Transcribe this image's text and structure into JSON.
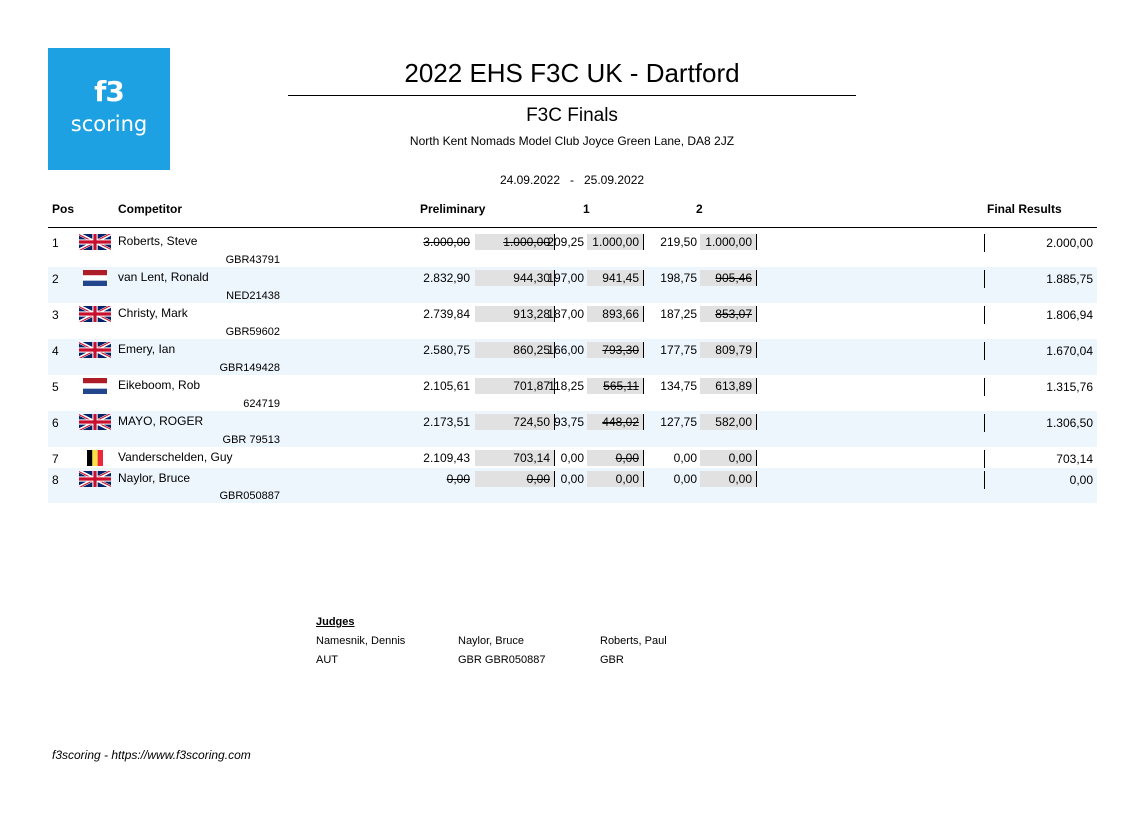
{
  "logo": {
    "line1": "f3",
    "line2": "scoring"
  },
  "event": {
    "title": "2022 EHS F3C UK - Dartford",
    "subtitle": "F3C Finals",
    "location": "North Kent Nomads Model Club Joyce Green Lane, DA8 2JZ",
    "date_start": "24.09.2022",
    "date_sep": "-",
    "date_end": "25.09.2022"
  },
  "table": {
    "headers": {
      "pos": "Pos",
      "competitor": "Competitor",
      "preliminary": "Preliminary",
      "round1": "1",
      "round2": "2",
      "final": "Final Results"
    },
    "rows": [
      {
        "pos": "1",
        "flag": "gbr",
        "name": "Roberts, Steve",
        "license": "GBR43791",
        "prelim_raw": "3.000,00",
        "prelim_raw_struck": true,
        "prelim_norm": "1.000,00",
        "prelim_norm_struck": true,
        "r1_raw": "209,25",
        "r1_norm": "1.000,00",
        "r1_struck": false,
        "r2_raw": "219,50",
        "r2_norm": "1.000,00",
        "r2_struck": false,
        "final": "2.000,00"
      },
      {
        "pos": "2",
        "flag": "ned",
        "name": "van Lent, Ronald",
        "license": "NED21438",
        "prelim_raw": "2.832,90",
        "prelim_raw_struck": false,
        "prelim_norm": "944,30",
        "prelim_norm_struck": false,
        "r1_raw": "197,00",
        "r1_norm": "941,45",
        "r1_struck": false,
        "r2_raw": "198,75",
        "r2_norm": "905,46",
        "r2_struck": true,
        "final": "1.885,75"
      },
      {
        "pos": "3",
        "flag": "gbr",
        "name": "Christy, Mark",
        "license": "GBR59602",
        "prelim_raw": "2.739,84",
        "prelim_raw_struck": false,
        "prelim_norm": "913,28",
        "prelim_norm_struck": false,
        "r1_raw": "187,00",
        "r1_norm": "893,66",
        "r1_struck": false,
        "r2_raw": "187,25",
        "r2_norm": "853,07",
        "r2_struck": true,
        "final": "1.806,94"
      },
      {
        "pos": "4",
        "flag": "gbr",
        "name": "Emery, Ian",
        "license": "GBR149428",
        "prelim_raw": "2.580,75",
        "prelim_raw_struck": false,
        "prelim_norm": "860,25",
        "prelim_norm_struck": false,
        "r1_raw": "166,00",
        "r1_norm": "793,30",
        "r1_struck": true,
        "r2_raw": "177,75",
        "r2_norm": "809,79",
        "r2_struck": false,
        "final": "1.670,04"
      },
      {
        "pos": "5",
        "flag": "ned",
        "name": "Eikeboom, Rob",
        "license": "624719",
        "prelim_raw": "2.105,61",
        "prelim_raw_struck": false,
        "prelim_norm": "701,87",
        "prelim_norm_struck": false,
        "r1_raw": "118,25",
        "r1_norm": "565,11",
        "r1_struck": true,
        "r2_raw": "134,75",
        "r2_norm": "613,89",
        "r2_struck": false,
        "final": "1.315,76"
      },
      {
        "pos": "6",
        "flag": "gbr",
        "name": "MAYO, ROGER",
        "license": "GBR 79513",
        "prelim_raw": "2.173,51",
        "prelim_raw_struck": false,
        "prelim_norm": "724,50",
        "prelim_norm_struck": false,
        "r1_raw": "93,75",
        "r1_norm": "448,02",
        "r1_struck": true,
        "r2_raw": "127,75",
        "r2_norm": "582,00",
        "r2_struck": false,
        "final": "1.306,50"
      },
      {
        "pos": "7",
        "flag": "bel",
        "name": "Vanderschelden, Guy",
        "license": "",
        "prelim_raw": "2.109,43",
        "prelim_raw_struck": false,
        "prelim_norm": "703,14",
        "prelim_norm_struck": false,
        "r1_raw": "0,00",
        "r1_norm": "0,00",
        "r1_struck": true,
        "r2_raw": "0,00",
        "r2_norm": "0,00",
        "r2_struck": false,
        "final": "703,14"
      },
      {
        "pos": "8",
        "flag": "gbr",
        "name": "Naylor, Bruce",
        "license": "GBR050887",
        "prelim_raw": "0,00",
        "prelim_raw_struck": true,
        "prelim_norm": "0,00",
        "prelim_norm_struck": true,
        "r1_raw": "0,00",
        "r1_norm": "0,00",
        "r1_struck": false,
        "r2_raw": "0,00",
        "r2_norm": "0,00",
        "r2_struck": false,
        "final": "0,00"
      }
    ]
  },
  "judges": {
    "title": "Judges",
    "list": [
      {
        "name": "Namesnik, Dennis",
        "country": "AUT"
      },
      {
        "name": "Naylor, Bruce",
        "country": "GBR GBR050887"
      },
      {
        "name": "Roberts, Paul",
        "country": "GBR"
      }
    ]
  },
  "footer": "f3scoring - https://www.f3scoring.com",
  "colors": {
    "logo_bg": "#1da1e2",
    "row_alt_bg": "#eef6fd",
    "cell_box_bg": "#e1e1e1"
  }
}
